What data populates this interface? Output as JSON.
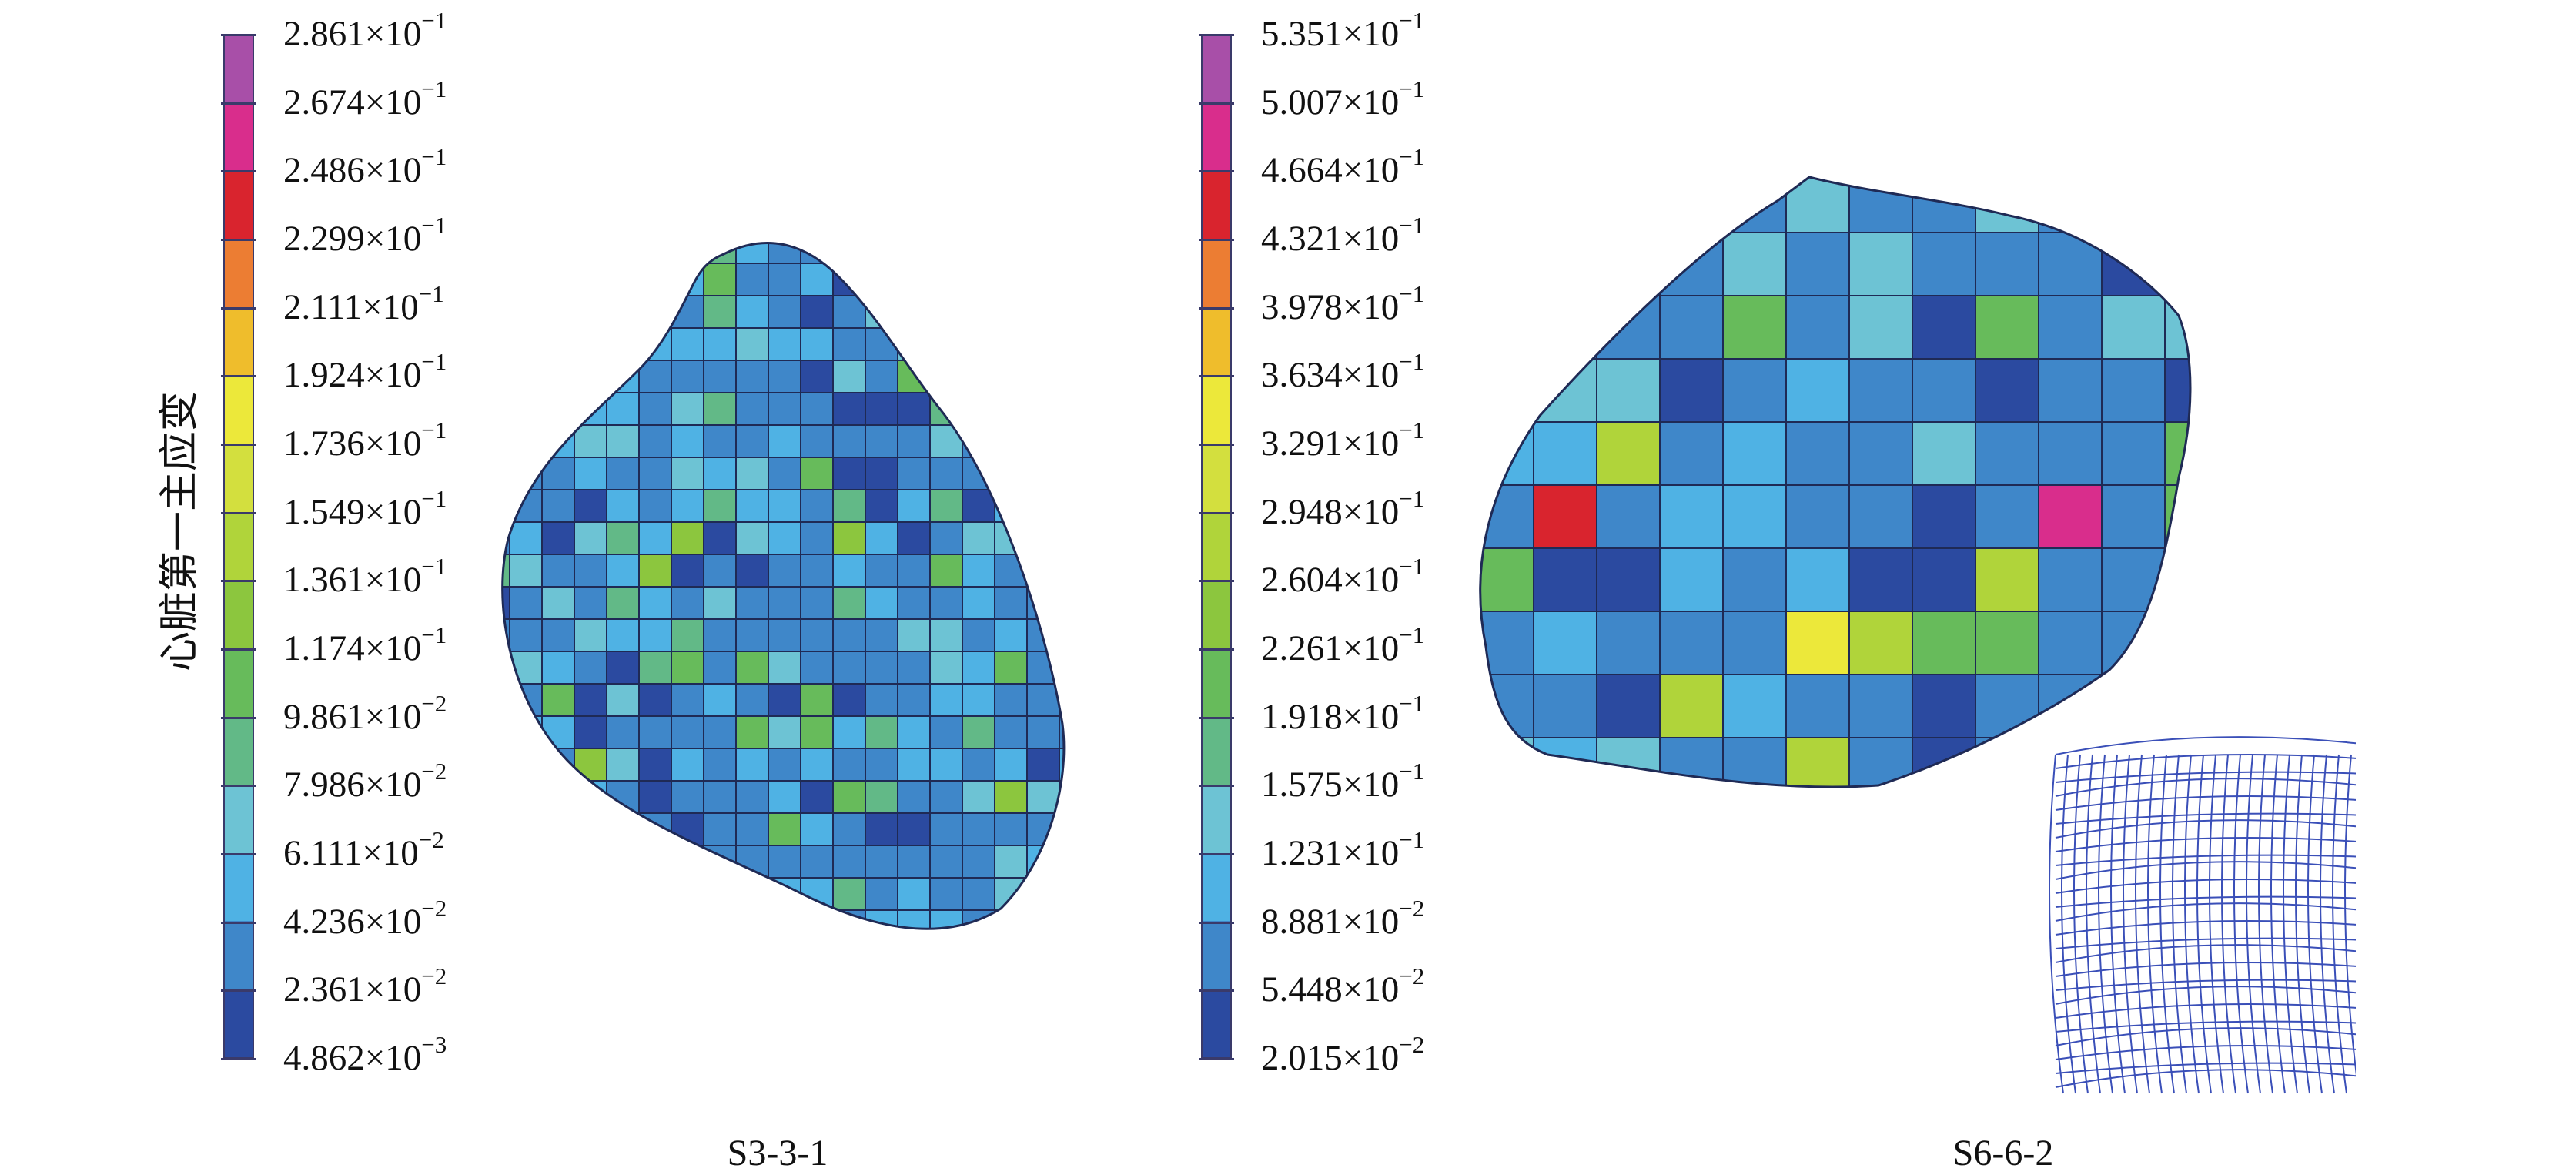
{
  "y_axis_label": "心脏第一主应变",
  "colors": {
    "scale": [
      "#a84fa8",
      "#d92d8c",
      "#d9242e",
      "#ec7d33",
      "#efbd2c",
      "#ece83a",
      "#d3df3e",
      "#b0d43a",
      "#8cc63e",
      "#67bb5b",
      "#62b987",
      "#6dc3d4",
      "#4fb2e4",
      "#3f87c9",
      "#2b4aa0"
    ],
    "mesh_line": "#1f2a55",
    "wireframe": "#3a4fb8"
  },
  "panels": [
    {
      "caption": "S3-3-1",
      "ticks": [
        {
          "mantissa": "2.861×10",
          "exp": "−1"
        },
        {
          "mantissa": "2.674×10",
          "exp": "−1"
        },
        {
          "mantissa": "2.486×10",
          "exp": "−1"
        },
        {
          "mantissa": "2.299×10",
          "exp": "−1"
        },
        {
          "mantissa": "2.111×10",
          "exp": "−1"
        },
        {
          "mantissa": "1.924×10",
          "exp": "−1"
        },
        {
          "mantissa": "1.736×10",
          "exp": "−1"
        },
        {
          "mantissa": "1.549×10",
          "exp": "−1"
        },
        {
          "mantissa": "1.361×10",
          "exp": "−1"
        },
        {
          "mantissa": "1.174×10",
          "exp": "−1"
        },
        {
          "mantissa": "9.861×10",
          "exp": "−2"
        },
        {
          "mantissa": "7.986×10",
          "exp": "−2"
        },
        {
          "mantissa": "6.111×10",
          "exp": "−2"
        },
        {
          "mantissa": "4.236×10",
          "exp": "−2"
        },
        {
          "mantissa": "2.361×10",
          "exp": "−2"
        },
        {
          "mantissa": "4.862×10",
          "exp": "−3"
        }
      ]
    },
    {
      "caption": "S6-6-2",
      "ticks": [
        {
          "mantissa": "5.351×10",
          "exp": "−1"
        },
        {
          "mantissa": "5.007×10",
          "exp": "−1"
        },
        {
          "mantissa": "4.664×10",
          "exp": "−1"
        },
        {
          "mantissa": "4.321×10",
          "exp": "−1"
        },
        {
          "mantissa": "3.978×10",
          "exp": "−1"
        },
        {
          "mantissa": "3.634×10",
          "exp": "−1"
        },
        {
          "mantissa": "3.291×10",
          "exp": "−1"
        },
        {
          "mantissa": "2.948×10",
          "exp": "−1"
        },
        {
          "mantissa": "2.604×10",
          "exp": "−1"
        },
        {
          "mantissa": "2.261×10",
          "exp": "−1"
        },
        {
          "mantissa": "1.918×10",
          "exp": "−1"
        },
        {
          "mantissa": "1.575×10",
          "exp": "−1"
        },
        {
          "mantissa": "1.231×10",
          "exp": "−1"
        },
        {
          "mantissa": "8.881×10",
          "exp": "−2"
        },
        {
          "mantissa": "5.448×10",
          "exp": "−2"
        },
        {
          "mantissa": "2.015×10",
          "exp": "−2"
        }
      ]
    }
  ]
}
